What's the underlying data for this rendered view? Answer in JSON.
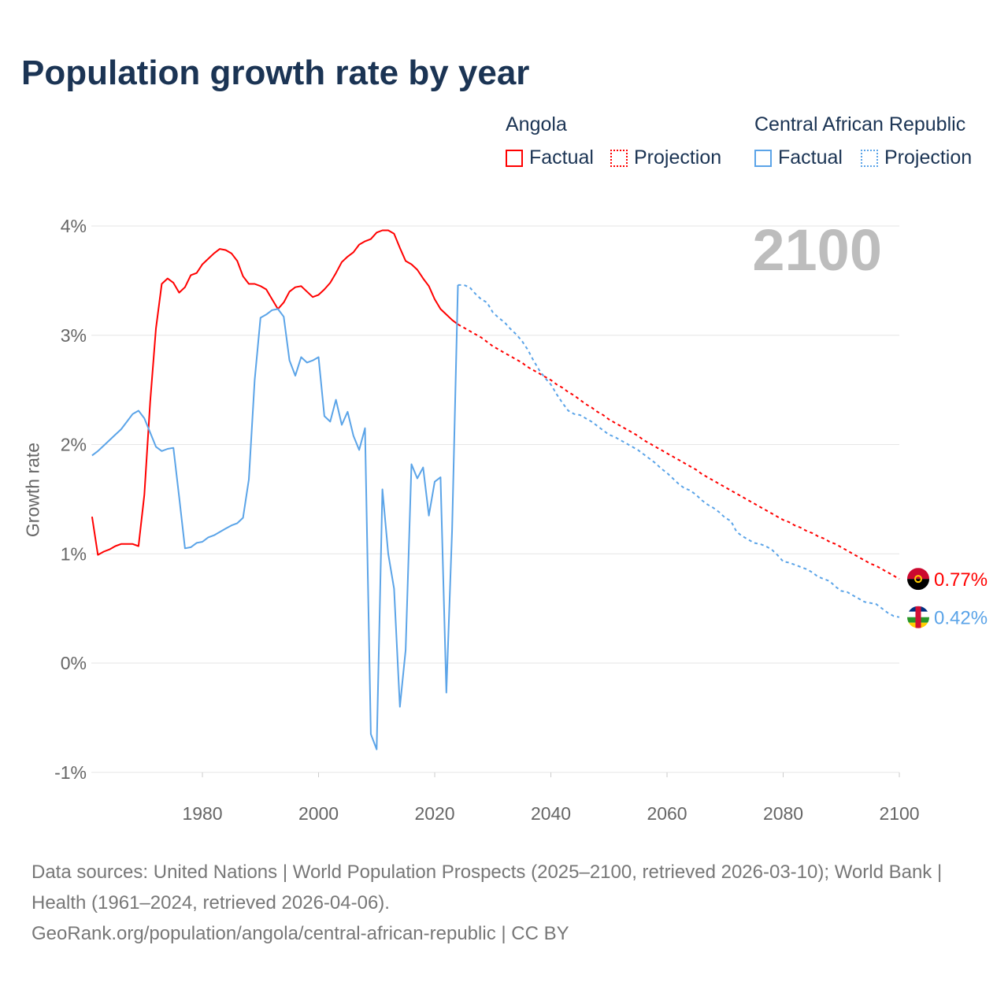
{
  "title": "Population growth rate by year",
  "legend": {
    "groups": [
      {
        "name": "Angola",
        "factual": "Factual",
        "projection": "Projection",
        "color": "#ff0000"
      },
      {
        "name": "Central African Republic",
        "factual": "Factual",
        "projection": "Projection",
        "color": "#5ba4e8"
      }
    ]
  },
  "year_overlay": "2100",
  "footer": {
    "line1": "Data sources: United Nations | World Population Prospects (2025–2100, retrieved 2026-03-10); World Bank | Health (1961–2024, retrieved 2026-04-06).",
    "line2": "GeoRank.org/population/angola/central-african-republic | CC BY"
  },
  "chart_data": {
    "type": "line",
    "title": "Population growth rate by year",
    "xlabel": "",
    "ylabel": "Growth rate",
    "xlim": [
      1961,
      2100
    ],
    "ylim": [
      -1,
      4
    ],
    "x_ticks": [
      1980,
      2000,
      2020,
      2040,
      2060,
      2080,
      2100
    ],
    "x_tick_labels": [
      "1980",
      "2000",
      "2020",
      "2040",
      "2060",
      "2080",
      "2100"
    ],
    "y_ticks": [
      -1,
      0,
      1,
      2,
      3,
      4
    ],
    "y_tick_labels": [
      "-1%",
      "0%",
      "1%",
      "2%",
      "3%",
      "4%"
    ],
    "grid": true,
    "legend_position": "top-right",
    "series": [
      {
        "name": "Angola",
        "kind": "Factual",
        "color": "#ff0000",
        "start_year": 1961,
        "values": [
          1.34,
          0.99,
          1.02,
          1.04,
          1.07,
          1.09,
          1.09,
          1.09,
          1.07,
          1.54,
          2.39,
          3.06,
          3.47,
          3.52,
          3.48,
          3.39,
          3.44,
          3.55,
          3.57,
          3.65,
          3.7,
          3.75,
          3.79,
          3.78,
          3.75,
          3.68,
          3.54,
          3.47,
          3.47,
          3.45,
          3.42,
          3.33,
          3.24,
          3.3,
          3.4,
          3.44,
          3.45,
          3.4,
          3.35,
          3.37,
          3.42,
          3.48,
          3.57,
          3.67,
          3.72,
          3.76,
          3.83,
          3.86,
          3.88,
          3.94,
          3.96,
          3.96,
          3.93,
          3.8,
          3.68,
          3.65,
          3.6,
          3.52,
          3.45,
          3.33,
          3.24,
          3.19,
          3.14,
          3.1
        ]
      },
      {
        "name": "Angola",
        "kind": "Projection",
        "color": "#ff0000",
        "start_year": 2024,
        "values": [
          3.1,
          3.07,
          3.04,
          3.01,
          2.98,
          2.94,
          2.9,
          2.87,
          2.84,
          2.81,
          2.78,
          2.75,
          2.71,
          2.68,
          2.65,
          2.62,
          2.59,
          2.55,
          2.52,
          2.48,
          2.45,
          2.41,
          2.37,
          2.34,
          2.3,
          2.27,
          2.23,
          2.2,
          2.17,
          2.14,
          2.11,
          2.08,
          2.04,
          2.01,
          1.98,
          1.95,
          1.92,
          1.89,
          1.86,
          1.83,
          1.8,
          1.77,
          1.73,
          1.7,
          1.67,
          1.64,
          1.61,
          1.58,
          1.55,
          1.52,
          1.49,
          1.46,
          1.43,
          1.4,
          1.37,
          1.34,
          1.31,
          1.29,
          1.26,
          1.24,
          1.21,
          1.19,
          1.16,
          1.14,
          1.11,
          1.09,
          1.06,
          1.03,
          1.0,
          0.97,
          0.94,
          0.91,
          0.89,
          0.86,
          0.83,
          0.8,
          0.77
        ],
        "end_label": "0.77%"
      },
      {
        "name": "Central African Republic",
        "kind": "Factual",
        "color": "#5ba4e8",
        "start_year": 1961,
        "values": [
          1.9,
          1.94,
          1.99,
          2.04,
          2.09,
          2.14,
          2.21,
          2.28,
          2.31,
          2.24,
          2.11,
          1.98,
          1.94,
          1.96,
          1.97,
          1.52,
          1.05,
          1.06,
          1.1,
          1.11,
          1.15,
          1.17,
          1.2,
          1.23,
          1.26,
          1.28,
          1.33,
          1.68,
          2.59,
          3.16,
          3.19,
          3.23,
          3.24,
          3.17,
          2.77,
          2.63,
          2.8,
          2.75,
          2.77,
          2.8,
          2.26,
          2.21,
          2.41,
          2.18,
          2.3,
          2.08,
          1.95,
          2.15,
          -0.65,
          -0.79,
          1.59,
          1.0,
          0.68,
          -0.4,
          0.12,
          1.82,
          1.69,
          1.79,
          1.35,
          1.66,
          1.7,
          -0.27,
          1.22,
          3.46
        ]
      },
      {
        "name": "Central African Republic",
        "kind": "Projection",
        "color": "#5ba4e8",
        "start_year": 2024,
        "values": [
          3.46,
          3.46,
          3.44,
          3.38,
          3.33,
          3.3,
          3.21,
          3.16,
          3.12,
          3.06,
          3.01,
          2.95,
          2.87,
          2.77,
          2.68,
          2.61,
          2.55,
          2.46,
          2.38,
          2.31,
          2.28,
          2.27,
          2.24,
          2.21,
          2.17,
          2.13,
          2.09,
          2.07,
          2.04,
          2.01,
          1.98,
          1.95,
          1.91,
          1.87,
          1.83,
          1.78,
          1.74,
          1.69,
          1.64,
          1.6,
          1.58,
          1.54,
          1.49,
          1.45,
          1.42,
          1.38,
          1.33,
          1.3,
          1.2,
          1.16,
          1.13,
          1.1,
          1.09,
          1.07,
          1.04,
          0.99,
          0.93,
          0.92,
          0.9,
          0.88,
          0.86,
          0.83,
          0.79,
          0.77,
          0.75,
          0.7,
          0.66,
          0.65,
          0.62,
          0.59,
          0.56,
          0.55,
          0.54,
          0.5,
          0.46,
          0.43,
          0.42
        ],
        "end_label": "0.42%"
      }
    ]
  }
}
